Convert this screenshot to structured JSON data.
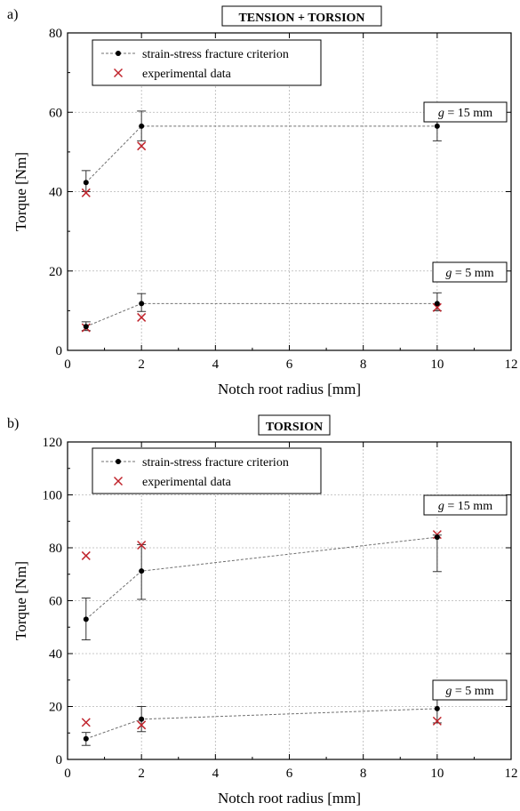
{
  "chart_data": [
    {
      "panel_label": "a)",
      "type": "scatter",
      "title": "TENSION + TORSION",
      "xlabel": "Notch root radius [mm]",
      "ylabel": "Torque [Nm]",
      "xlim": [
        0,
        12
      ],
      "ylim": [
        0,
        80
      ],
      "xticks": [
        0,
        2,
        4,
        6,
        8,
        10,
        12
      ],
      "yticks": [
        0,
        20,
        40,
        60,
        80
      ],
      "grid": true,
      "legend_position": "top-left",
      "legend": [
        {
          "label": "strain-stress fracture criterion",
          "marker": "dot-line"
        },
        {
          "label": "experimental data",
          "marker": "cross"
        }
      ],
      "annotations": [
        {
          "label_var": "g",
          "label_rest": " = 15 mm",
          "x": 10.6,
          "y": 65
        },
        {
          "label_var": "g",
          "label_rest": " = 5 mm",
          "x": 10.6,
          "y": 20
        }
      ],
      "criterion": [
        {
          "x": [
            0.5,
            2,
            10
          ],
          "y": [
            42.3,
            56.5,
            56.5
          ],
          "yerr_low": [
            40.0,
            52.8,
            52.8
          ],
          "yerr_high": [
            45.3,
            60.3,
            60.3
          ]
        },
        {
          "x": [
            0.5,
            2,
            10
          ],
          "y": [
            6.0,
            11.8,
            11.8
          ],
          "yerr_low": [
            5.0,
            9.8,
            10.0
          ],
          "yerr_high": [
            7.2,
            14.3,
            14.5
          ]
        }
      ],
      "experimental": [
        {
          "x": [
            0.5,
            2,
            10
          ],
          "y": [
            39.7,
            51.5,
            59.0
          ]
        },
        {
          "x": [
            0.5,
            2,
            10
          ],
          "y": [
            5.7,
            8.3,
            10.8
          ]
        }
      ]
    },
    {
      "panel_label": "b)",
      "type": "scatter",
      "title": "TORSION",
      "xlabel": "Notch root radius [mm]",
      "ylabel": "Torque [Nm]",
      "xlim": [
        0,
        12
      ],
      "ylim": [
        0,
        120
      ],
      "xticks": [
        0,
        2,
        4,
        6,
        8,
        10,
        12
      ],
      "yticks": [
        0,
        20,
        40,
        60,
        80,
        100,
        120
      ],
      "grid": true,
      "legend_position": "top-left",
      "legend": [
        {
          "label": "strain-stress fracture criterion",
          "marker": "dot-line"
        },
        {
          "label": "experimental data",
          "marker": "cross"
        }
      ],
      "annotations": [
        {
          "label_var": "g",
          "label_rest": " = 15 mm",
          "x": 10.6,
          "y": 96
        },
        {
          "label_var": "g",
          "label_rest": " = 5 mm",
          "x": 10.6,
          "y": 29
        }
      ],
      "criterion": [
        {
          "x": [
            0.5,
            2,
            10
          ],
          "y": [
            53.0,
            71.2,
            84.0
          ],
          "yerr_low": [
            45.2,
            60.5,
            71.0
          ],
          "yerr_high": [
            61.0,
            81.2,
            84.8
          ]
        },
        {
          "x": [
            0.5,
            2,
            10
          ],
          "y": [
            7.8,
            15.2,
            19.2
          ],
          "yerr_low": [
            5.3,
            10.5,
            13.8
          ],
          "yerr_high": [
            10.2,
            20.0,
            25.0
          ]
        }
      ],
      "experimental": [
        {
          "x": [
            0.5,
            2,
            10
          ],
          "y": [
            77.0,
            81.0,
            85.0
          ]
        },
        {
          "x": [
            0.5,
            2,
            10
          ],
          "y": [
            14.0,
            13.0,
            14.5
          ]
        }
      ]
    }
  ]
}
